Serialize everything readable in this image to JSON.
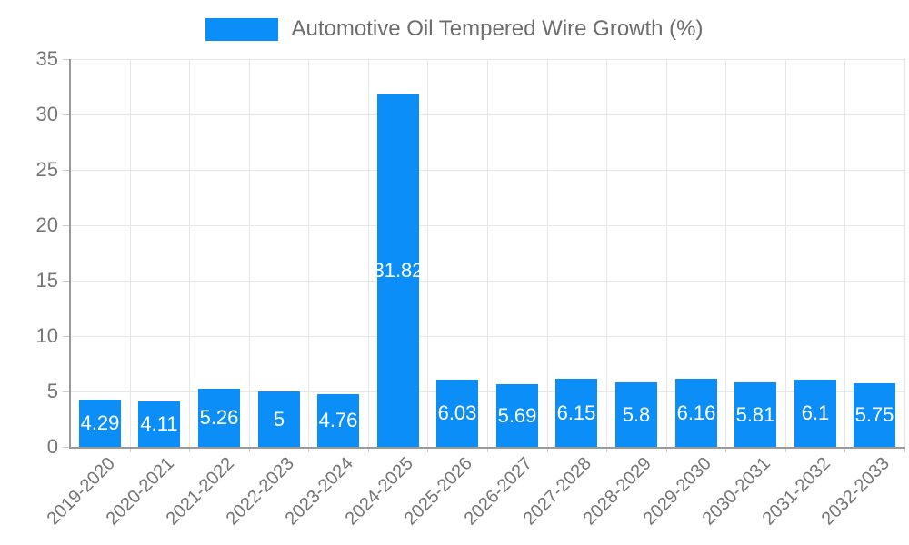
{
  "chart_data": {
    "type": "bar",
    "title": "Automotive Oil Tempered Wire Growth (%)",
    "categories": [
      "2019-2020",
      "2020-2021",
      "2021-2022",
      "2022-2023",
      "2023-2024",
      "2024-2025",
      "2025-2026",
      "2026-2027",
      "2027-2028",
      "2028-2029",
      "2029-2030",
      "2030-2031",
      "2031-2032",
      "2032-2033"
    ],
    "values": [
      4.29,
      4.11,
      5.26,
      5,
      4.76,
      31.82,
      6.03,
      5.69,
      6.15,
      5.8,
      6.16,
      5.81,
      6.1,
      5.75
    ],
    "xlabel": "",
    "ylabel": "",
    "ylim": [
      0,
      35
    ],
    "ytick_step": 5,
    "yticks": [
      0,
      5,
      10,
      15,
      20,
      25,
      30,
      35
    ],
    "grid": true,
    "legend_position": "top",
    "bar_color": "#0c8ef8",
    "value_label_color": "#ffffff",
    "grid_color": "#e7e7e7",
    "axis_color": "#9a9a9a",
    "tick_label_color": "#757575",
    "title_color": "#6d6d6d"
  }
}
